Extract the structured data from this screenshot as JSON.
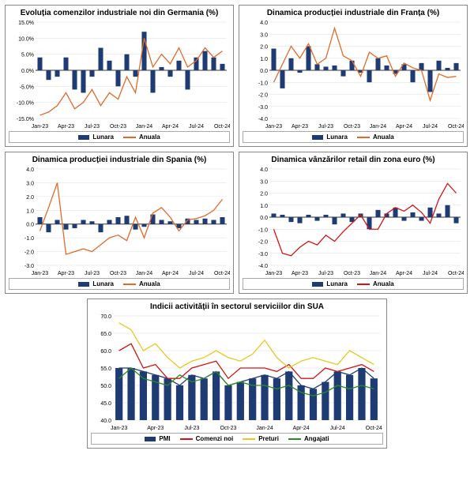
{
  "xcats": [
    "Jan-23",
    "",
    "",
    "Apr-23",
    "",
    "",
    "Jul-23",
    "",
    "",
    "Oct-23",
    "",
    "",
    "Jan-24",
    "",
    "",
    "Apr-24",
    "",
    "",
    "Jul-24",
    "",
    "",
    "Oct-24"
  ],
  "charts": {
    "germany": {
      "title": "Evoluția comenzilor industriale noi din Germania (%)",
      "ylim": [
        -15,
        15
      ],
      "ystep": 5,
      "ysuffix": ".0%",
      "bars": [
        4,
        -3,
        -2,
        4,
        -6,
        -7,
        -2,
        7,
        3,
        -5,
        5,
        -2,
        12,
        -7,
        1,
        -2,
        3,
        -6,
        4,
        6,
        4,
        2
      ],
      "line_color": "#e06a2a",
      "line": [
        -14,
        -13,
        -11,
        -7,
        -12,
        -10,
        -6,
        -11,
        -7,
        -9,
        -2,
        -7,
        10,
        1,
        5,
        2,
        7,
        1,
        3,
        7,
        4,
        6
      ]
    },
    "france": {
      "title": "Dinamica producției industriale din Franța (%)",
      "ylim": [
        -4,
        4
      ],
      "ystep": 1,
      "ysuffix": ".0",
      "bars": [
        1.8,
        -1.5,
        1.0,
        -0.2,
        2.0,
        0.5,
        0.3,
        0.4,
        -0.5,
        0.8,
        -0.2,
        -1.0,
        1.0,
        0.4,
        -0.3,
        0.5,
        -1.0,
        0.6,
        -1.8,
        0.8,
        0.2,
        0.6
      ],
      "line_color": "#e06a2a",
      "line": [
        -1.0,
        0.5,
        2.0,
        1.0,
        2.2,
        0.5,
        1.0,
        3.5,
        1.2,
        0.8,
        -0.5,
        1.5,
        1.0,
        1.2,
        -0.5,
        0.6,
        0.2,
        0.0,
        -2.5,
        -0.3,
        -0.6,
        -0.5
      ]
    },
    "spain": {
      "title": "Dinamica producției industriale din Spania (%)",
      "ylim": [
        -3,
        4
      ],
      "ystep": 1,
      "ysuffix": ".0",
      "bars": [
        0.5,
        -0.6,
        0.3,
        -0.4,
        -0.3,
        0.3,
        0.2,
        -0.6,
        0.3,
        0.5,
        0.6,
        -0.4,
        -0.2,
        0.7,
        0.3,
        0.2,
        -0.3,
        0.4,
        0.3,
        0.4,
        0.3,
        0.5
      ],
      "line_color": "#e06a2a",
      "line": [
        -0.5,
        1.2,
        3.0,
        -2.2,
        -2.0,
        -1.8,
        -2.0,
        -1.5,
        -1.0,
        -0.8,
        -1.2,
        0.5,
        -1.0,
        0.8,
        1.2,
        0.5,
        -0.5,
        0.3,
        0.4,
        0.6,
        1.0,
        1.8
      ]
    },
    "retail": {
      "title": "Dinamica vânzărilor retail din zona euro (%)",
      "ylim": [
        -4,
        4
      ],
      "ystep": 1,
      "ysuffix": ".0",
      "bars": [
        0.3,
        0.2,
        -0.4,
        -0.5,
        0.2,
        -0.3,
        0.2,
        -0.6,
        0.3,
        -0.4,
        0.3,
        -1.0,
        0.6,
        0.3,
        0.8,
        -0.3,
        0.4,
        -0.3,
        0.8,
        0.3,
        1.0,
        -0.5
      ],
      "line_color": "#d11515",
      "line": [
        -1.0,
        -3.0,
        -3.2,
        -2.5,
        -2.0,
        -2.3,
        -1.5,
        -2.0,
        -1.2,
        -0.5,
        0.2,
        -1.0,
        -1.0,
        0.3,
        0.8,
        0.5,
        1.0,
        0.4,
        -0.5,
        1.5,
        2.8,
        2.0
      ]
    }
  },
  "big": {
    "title": "Indicii activității în sectorul serviciilor din SUA",
    "ylim": [
      40,
      70
    ],
    "ystep": 5,
    "bars": [
      55,
      55,
      54,
      53,
      52,
      50,
      53,
      52,
      54,
      50,
      51,
      52,
      53,
      52,
      54,
      50,
      49,
      51,
      54,
      53,
      55,
      52
    ],
    "series": [
      {
        "name": "PMI",
        "color": "#1f3b73",
        "vals": [
          55,
          55,
          54,
          53,
          52,
          50,
          53,
          52,
          54,
          50,
          51,
          52,
          53,
          52,
          54,
          50,
          49,
          51,
          54,
          53,
          55,
          52
        ]
      },
      {
        "name": "Comenzi noi",
        "color": "#d11515",
        "vals": [
          60,
          62,
          55,
          56,
          52,
          52,
          55,
          56,
          57,
          52,
          55,
          55,
          55,
          54,
          56,
          52,
          52,
          55,
          54,
          55,
          56,
          54
        ]
      },
      {
        "name": "Preturi",
        "color": "#e8c81e",
        "vals": [
          68,
          66,
          60,
          62,
          58,
          55,
          57,
          58,
          60,
          58,
          57,
          59,
          63,
          58,
          55,
          57,
          58,
          57,
          56,
          60,
          58,
          56
        ]
      },
      {
        "name": "Angajati",
        "color": "#2a8a2a",
        "vals": [
          52,
          55,
          52,
          51,
          50,
          53,
          51,
          52,
          54,
          50,
          51,
          50,
          50,
          49,
          50,
          48,
          47,
          48,
          50,
          49,
          50,
          49
        ]
      }
    ]
  },
  "legend": {
    "bar": "Lunara",
    "line": "Anuala"
  }
}
